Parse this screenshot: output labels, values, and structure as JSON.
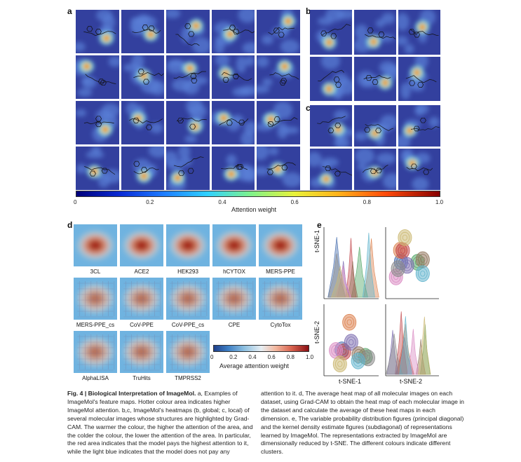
{
  "panels": {
    "a": "a",
    "b": "b",
    "c": "c",
    "d": "d",
    "e": "e"
  },
  "colorbar_top": {
    "ticks": [
      "0",
      "0.2",
      "0.4",
      "0.6",
      "0.8",
      "1.0"
    ],
    "title": "Attention weight"
  },
  "colorbar_d": {
    "ticks": [
      "0",
      "0.2",
      "0.4",
      "0.6",
      "0.8",
      "1.0"
    ],
    "title": "Average attention weight"
  },
  "datasets": [
    "3CL",
    "ACE2",
    "HEK293",
    "hCYTOX",
    "MERS-PPE",
    "MERS-PPE_cs",
    "CoV-PPE",
    "CoV-PPE_cs",
    "CPE",
    "CytoTox",
    "AlphaLISA",
    "TruHits",
    "TMPRSS2"
  ],
  "panel_e": {
    "ylabel_top": "t-SNE-1",
    "ylabel_bottom": "t-SNE-2",
    "xlabel_left": "t-SNE-1",
    "xlabel_right": "t-SNE-2"
  },
  "caption": {
    "fig": "Fig. 4 | Biological Interpretation of ImageMol.",
    "left": " a, Examples of ImageMol's feature maps. Hotter colour area indicates higher ImageMol attention. b,c, ImageMol's heatmaps (b, global; c, local) of several molecular images whose structures are highlighted by Grad-CAM. The warmer the colour, the higher the attention of the area, and the colder the colour, the lower the attention of the area. In particular, the red area indicates that the model pays the highest attention to it, while the light blue indicates that the model does not pay any",
    "right": "attention to it. d, The average heat map of all molecular images on each dataset, using Grad-CAM to obtain the heat map of each molecular image in the dataset and calculate the average of these heat maps in each dimension. e, The variable probability distribution figures (principal diagonal) and the kernel density estimate figures (subdiagonal) of representations learned by ImageMol. The representations extracted by ImageMol are dimensionally reduced by t-SNE. The different colours indicate different clusters."
  },
  "colors": {
    "cold": "#2f3d9a",
    "blue": "#4a6fd0",
    "cyan": "#7fd4e8",
    "warm": "#f2c230",
    "hot": "#d8341e"
  }
}
